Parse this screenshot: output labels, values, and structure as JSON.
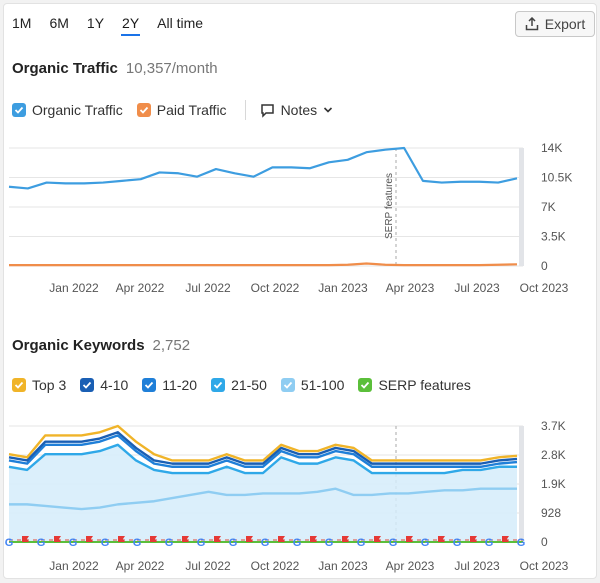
{
  "periods": [
    {
      "label": "1M",
      "active": false
    },
    {
      "label": "6M",
      "active": false
    },
    {
      "label": "1Y",
      "active": false
    },
    {
      "label": "2Y",
      "active": true
    },
    {
      "label": "All time",
      "active": false
    }
  ],
  "export_label": "Export",
  "traffic": {
    "title": "Organic Traffic",
    "value": "10,357/month",
    "legend": [
      {
        "label": "Organic Traffic",
        "color": "#3d9de0"
      },
      {
        "label": "Paid Traffic",
        "color": "#f08d4a"
      }
    ],
    "notes_label": "Notes",
    "annotation": "SERP features"
  },
  "keywords": {
    "title": "Organic Keywords",
    "value": "2,752",
    "legend": [
      {
        "label": "Top 3",
        "color": "#f0b429"
      },
      {
        "label": "4-10",
        "color": "#1a5fb4"
      },
      {
        "label": "11-20",
        "color": "#1f7fd8"
      },
      {
        "label": "21-50",
        "color": "#2fa8e8"
      },
      {
        "label": "51-100",
        "color": "#8fcdf2"
      },
      {
        "label": "SERP features",
        "color": "#5bbf3a"
      }
    ]
  },
  "chart_data": [
    {
      "type": "line",
      "x_labels": [
        "Jan 2022",
        "Apr 2022",
        "Jul 2022",
        "Oct 2022",
        "Jan 2023",
        "Apr 2023",
        "Jul 2023",
        "Oct 2023"
      ],
      "y_ticks": [
        "14K",
        "10.5K",
        "7K",
        "3.5K",
        "0"
      ],
      "ylim": [
        0,
        14000
      ],
      "series": [
        {
          "name": "Organic Traffic",
          "color": "#3d9de0",
          "values": [
            9400,
            9200,
            9900,
            9800,
            9800,
            9900,
            10100,
            10300,
            11100,
            11000,
            10600,
            11500,
            11000,
            10600,
            11700,
            11700,
            11600,
            12300,
            12600,
            13500,
            13800,
            14000,
            10100,
            9900,
            10000,
            10000,
            9900,
            10400
          ]
        },
        {
          "name": "Paid Traffic",
          "color": "#f08d4a",
          "values": [
            100,
            100,
            100,
            100,
            100,
            100,
            100,
            100,
            100,
            100,
            100,
            100,
            100,
            100,
            100,
            100,
            100,
            100,
            150,
            300,
            150,
            100,
            100,
            100,
            100,
            100,
            150,
            200
          ]
        }
      ]
    },
    {
      "type": "area",
      "x_labels": [
        "Jan 2022",
        "Apr 2022",
        "Jul 2022",
        "Oct 2022",
        "Jan 2023",
        "Apr 2023",
        "Jul 2023",
        "Oct 2023"
      ],
      "y_ticks": [
        "3.7K",
        "2.8K",
        "1.9K",
        "928",
        "0"
      ],
      "ylim": [
        0,
        3700
      ],
      "series": [
        {
          "name": "Top 3",
          "color": "#f0b429",
          "values": [
            2800,
            2700,
            3400,
            3400,
            3400,
            3500,
            3700,
            3200,
            2800,
            2600,
            2600,
            2600,
            2800,
            2600,
            2600,
            3100,
            2900,
            2900,
            3100,
            3000,
            2600,
            2600,
            2600,
            2600,
            2600,
            2600,
            2600,
            2700,
            2750
          ]
        },
        {
          "name": "4-10",
          "color": "#1a5fb4",
          "values": [
            2700,
            2600,
            3200,
            3200,
            3200,
            3300,
            3500,
            3000,
            2600,
            2500,
            2500,
            2500,
            2700,
            2500,
            2500,
            3000,
            2800,
            2800,
            3000,
            2900,
            2500,
            2500,
            2500,
            2500,
            2500,
            2500,
            2500,
            2600,
            2650
          ]
        },
        {
          "name": "11-20",
          "color": "#1f7fd8",
          "values": [
            2600,
            2500,
            3100,
            3100,
            3100,
            3200,
            3400,
            2900,
            2500,
            2400,
            2400,
            2400,
            2600,
            2400,
            2400,
            2900,
            2700,
            2700,
            2900,
            2800,
            2400,
            2400,
            2400,
            2400,
            2400,
            2400,
            2400,
            2500,
            2550
          ]
        },
        {
          "name": "21-50",
          "color": "#2fa8e8",
          "values": [
            2400,
            2300,
            2800,
            2800,
            2800,
            2900,
            3100,
            2600,
            2300,
            2200,
            2200,
            2200,
            2400,
            2200,
            2200,
            2700,
            2500,
            2500,
            2700,
            2600,
            2200,
            2200,
            2200,
            2200,
            2200,
            2300,
            2300,
            2400,
            2400
          ]
        },
        {
          "name": "51-100",
          "color": "#8fcdf2",
          "values": [
            1200,
            1200,
            1150,
            1100,
            1050,
            1100,
            1200,
            1250,
            1300,
            1400,
            1500,
            1600,
            1500,
            1500,
            1550,
            1550,
            1550,
            1600,
            1700,
            1500,
            1500,
            1550,
            1550,
            1600,
            1650,
            1650,
            1700,
            1700,
            1700
          ]
        }
      ]
    }
  ]
}
